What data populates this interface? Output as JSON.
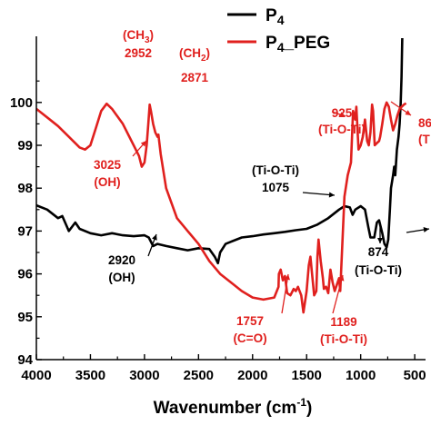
{
  "chart_data": {
    "type": "line",
    "xlabel": "Wavenumber (cm",
    "xlabel_sup": "-1",
    "xlabel_close": ")",
    "xlim": [
      4000,
      400
    ],
    "ylim": [
      94,
      101.5
    ],
    "x_ticks": [
      4000,
      3500,
      3000,
      2500,
      2000,
      1500,
      1000,
      500
    ],
    "y_ticks": [
      94,
      95,
      96,
      97,
      98,
      99,
      100
    ],
    "y_tick_labels": [
      "94",
      "95",
      "96",
      "97",
      "98",
      "99",
      "100"
    ],
    "series": [
      {
        "name": "P4",
        "name_base": "P",
        "name_sub": "4",
        "color": "#000000",
        "points": [
          [
            4000,
            97.6
          ],
          [
            3900,
            97.5
          ],
          [
            3800,
            97.3
          ],
          [
            3760,
            97.35
          ],
          [
            3700,
            97.0
          ],
          [
            3640,
            97.2
          ],
          [
            3600,
            97.05
          ],
          [
            3500,
            96.95
          ],
          [
            3400,
            96.9
          ],
          [
            3300,
            96.95
          ],
          [
            3200,
            96.9
          ],
          [
            3100,
            96.88
          ],
          [
            3000,
            96.9
          ],
          [
            2960,
            96.85
          ],
          [
            2920,
            96.65
          ],
          [
            2880,
            96.7
          ],
          [
            2800,
            96.65
          ],
          [
            2700,
            96.6
          ],
          [
            2600,
            96.55
          ],
          [
            2500,
            96.6
          ],
          [
            2400,
            96.58
          ],
          [
            2350,
            96.4
          ],
          [
            2320,
            96.25
          ],
          [
            2300,
            96.5
          ],
          [
            2250,
            96.7
          ],
          [
            2200,
            96.75
          ],
          [
            2100,
            96.85
          ],
          [
            2000,
            96.88
          ],
          [
            1900,
            96.92
          ],
          [
            1800,
            96.95
          ],
          [
            1700,
            96.98
          ],
          [
            1600,
            97.02
          ],
          [
            1500,
            97.05
          ],
          [
            1400,
            97.15
          ],
          [
            1300,
            97.3
          ],
          [
            1200,
            97.5
          ],
          [
            1150,
            97.58
          ],
          [
            1100,
            97.55
          ],
          [
            1075,
            97.38
          ],
          [
            1050,
            97.5
          ],
          [
            1000,
            97.58
          ],
          [
            960,
            97.5
          ],
          [
            930,
            97.1
          ],
          [
            910,
            96.85
          ],
          [
            874,
            96.85
          ],
          [
            850,
            97.2
          ],
          [
            830,
            97.25
          ],
          [
            800,
            96.95
          ],
          [
            780,
            96.7
          ],
          [
            760,
            96.62
          ],
          [
            745,
            96.8
          ],
          [
            730,
            97.5
          ],
          [
            720,
            98.0
          ],
          [
            700,
            98.3
          ],
          [
            690,
            98.5
          ],
          [
            680,
            98.3
          ],
          [
            665,
            98.9
          ],
          [
            650,
            99.2
          ],
          [
            640,
            99.5
          ],
          [
            630,
            100.0
          ],
          [
            622,
            100.6
          ],
          [
            615,
            101.5
          ]
        ]
      },
      {
        "name": "P4_PEG",
        "name_base": "P",
        "name_sub": "4",
        "name_suffix": "_PEG",
        "color": "#e0201e",
        "points": [
          [
            4000,
            99.85
          ],
          [
            3900,
            99.65
          ],
          [
            3800,
            99.45
          ],
          [
            3700,
            99.2
          ],
          [
            3600,
            98.95
          ],
          [
            3550,
            98.9
          ],
          [
            3500,
            99.0
          ],
          [
            3450,
            99.4
          ],
          [
            3400,
            99.8
          ],
          [
            3350,
            99.97
          ],
          [
            3300,
            99.85
          ],
          [
            3200,
            99.5
          ],
          [
            3100,
            99.0
          ],
          [
            3050,
            98.75
          ],
          [
            3025,
            98.5
          ],
          [
            3000,
            98.6
          ],
          [
            2980,
            99.0
          ],
          [
            2965,
            99.5
          ],
          [
            2952,
            99.95
          ],
          [
            2940,
            99.8
          ],
          [
            2920,
            99.5
          ],
          [
            2900,
            99.3
          ],
          [
            2880,
            99.2
          ],
          [
            2871,
            99.25
          ],
          [
            2850,
            98.8
          ],
          [
            2800,
            98.0
          ],
          [
            2700,
            97.3
          ],
          [
            2600,
            97.0
          ],
          [
            2500,
            96.7
          ],
          [
            2400,
            96.3
          ],
          [
            2300,
            96.0
          ],
          [
            2200,
            95.8
          ],
          [
            2100,
            95.6
          ],
          [
            2000,
            95.45
          ],
          [
            1900,
            95.4
          ],
          [
            1800,
            95.45
          ],
          [
            1760,
            95.7
          ],
          [
            1757,
            96.0
          ],
          [
            1740,
            96.1
          ],
          [
            1720,
            95.85
          ],
          [
            1700,
            95.95
          ],
          [
            1680,
            95.55
          ],
          [
            1650,
            95.5
          ],
          [
            1620,
            95.65
          ],
          [
            1600,
            95.6
          ],
          [
            1580,
            95.7
          ],
          [
            1550,
            95.5
          ],
          [
            1530,
            95.1
          ],
          [
            1500,
            95.6
          ],
          [
            1480,
            96.2
          ],
          [
            1465,
            96.4
          ],
          [
            1450,
            96.0
          ],
          [
            1430,
            95.5
          ],
          [
            1410,
            95.6
          ],
          [
            1400,
            96.4
          ],
          [
            1390,
            96.8
          ],
          [
            1370,
            96.3
          ],
          [
            1350,
            95.9
          ],
          [
            1340,
            95.65
          ],
          [
            1320,
            95.7
          ],
          [
            1300,
            95.55
          ],
          [
            1280,
            96.1
          ],
          [
            1260,
            95.8
          ],
          [
            1240,
            95.6
          ],
          [
            1220,
            95.75
          ],
          [
            1200,
            95.9
          ],
          [
            1189,
            95.6
          ],
          [
            1170,
            96.7
          ],
          [
            1150,
            97.8
          ],
          [
            1120,
            98.3
          ],
          [
            1090,
            98.6
          ],
          [
            1070,
            99.8
          ],
          [
            1050,
            99.6
          ],
          [
            1040,
            99.9
          ],
          [
            1020,
            98.9
          ],
          [
            1000,
            99.0
          ],
          [
            980,
            99.2
          ],
          [
            960,
            99.6
          ],
          [
            940,
            99.1
          ],
          [
            925,
            99.0
          ],
          [
            910,
            99.3
          ],
          [
            895,
            99.95
          ],
          [
            885,
            99.8
          ],
          [
            870,
            99.0
          ],
          [
            850,
            99.05
          ],
          [
            830,
            99.1
          ],
          [
            820,
            99.2
          ],
          [
            800,
            99.5
          ],
          [
            780,
            99.85
          ],
          [
            760,
            100.0
          ],
          [
            740,
            99.9
          ],
          [
            720,
            99.6
          ],
          [
            700,
            99.35
          ],
          [
            680,
            99.5
          ],
          [
            660,
            99.7
          ],
          [
            640,
            99.85
          ],
          [
            620,
            99.9
          ],
          [
            600,
            99.95
          ],
          [
            580,
            99.98
          ]
        ]
      }
    ],
    "annotations": [
      {
        "lines": [
          "(CH",
          "2952"
        ],
        "sub": "3",
        "color": "#e0201e"
      },
      {
        "lines": [
          "(CH",
          "2871"
        ],
        "sub": "2",
        "color": "#e0201e"
      },
      {
        "lines": [
          "3025",
          "(OH)"
        ],
        "color": "#e0201e"
      },
      {
        "lines": [
          "925",
          "(Ti-O-Ti)"
        ],
        "color": "#e0201e"
      },
      {
        "lines": [
          "86",
          "(T"
        ],
        "color": "#e0201e"
      },
      {
        "lines": [
          "1757",
          "(C=O)"
        ],
        "color": "#e0201e"
      },
      {
        "lines": [
          "1189",
          "(Ti-O-Ti)"
        ],
        "color": "#e0201e"
      },
      {
        "lines": [
          "(Ti-O-Ti)",
          "1075"
        ],
        "color": "#000000"
      },
      {
        "lines": [
          "2920",
          "(OH)"
        ],
        "color": "#000000"
      },
      {
        "lines": [
          "874",
          "(Ti-O-Ti)"
        ],
        "color": "#000000"
      }
    ],
    "legend_placement": "top-right",
    "grid": false
  }
}
